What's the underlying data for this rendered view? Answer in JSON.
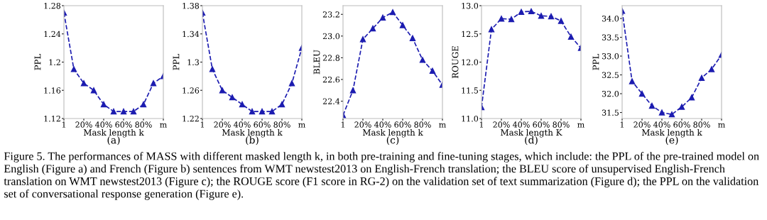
{
  "chart_data": [
    {
      "type": "line",
      "xlabel": "Mask length k",
      "ylabel": "PPL",
      "annotations": [
        "(a)",
        "Figure 5. The performances of MASS with different masked length k, in both pre-training and fine-tuning stages, which include: the PPL of the pre-trained model on English (Figure a) and French (Figure b) sentences from WMT newstest2013 on English-French translation; the BLEU score of unsupervised English-French translation on WMT newstest2013 (Figure c); the ROUGE score (F1 score in RG-2) on the validation set of text summarization (Figure d); the PPL on the validation set of conversational response generation (Figure e)."
      ],
      "categories": [
        "1",
        null,
        "20%",
        null,
        "40%",
        null,
        "60%",
        null,
        "80%",
        null,
        "m"
      ],
      "ylim": [
        1.12,
        1.28
      ],
      "yticks": [
        1.12,
        1.16,
        {
          "value": 1.2,
          "label": "1.2"
        },
        1.24,
        1.28
      ],
      "marker": "triangle",
      "line_style": "dashed",
      "grid": false,
      "series": [
        {
          "color": "#1c1cb0",
          "values": [
            1.27,
            1.19,
            1.17,
            1.16,
            1.14,
            1.13,
            1.13,
            1.13,
            1.14,
            1.17,
            1.18
          ]
        }
      ]
    },
    {
      "type": "line",
      "xlabel": "Mask length k",
      "ylabel": "PPL",
      "annotations": [
        "(b)"
      ],
      "categories": [
        "1",
        null,
        "20%",
        null,
        "40%",
        null,
        "60%",
        null,
        "80%",
        null,
        "m"
      ],
      "ylim": [
        1.22,
        1.38
      ],
      "yticks": [
        1.22,
        1.26,
        {
          "value": 1.3,
          "label": "1.3"
        },
        1.34,
        1.38
      ],
      "marker": "triangle",
      "line_style": "dashed",
      "grid": false,
      "series": [
        {
          "color": "#1c1cb0",
          "values": [
            1.37,
            1.29,
            1.26,
            1.25,
            1.24,
            1.23,
            1.23,
            1.23,
            1.24,
            1.27,
            1.32
          ]
        }
      ]
    },
    {
      "type": "line",
      "xlabel": "Mask length k",
      "ylabel": "BLEU",
      "annotations": [
        "(c)"
      ],
      "categories": [
        "1",
        null,
        "20%",
        null,
        "40%",
        null,
        "60%",
        null,
        "80%",
        null,
        "m"
      ],
      "ylim": [
        22.24,
        23.28
      ],
      "yticks": [
        22.4,
        22.6,
        22.8,
        {
          "value": 23.0,
          "label": "23.0"
        },
        23.2
      ],
      "marker": "triangle",
      "line_style": "dashed",
      "grid": false,
      "series": [
        {
          "color": "#1c1cb0",
          "values": [
            22.27,
            22.5,
            22.97,
            23.07,
            23.17,
            23.22,
            23.1,
            22.98,
            22.78,
            22.68,
            22.55
          ]
        }
      ]
    },
    {
      "type": "line",
      "xlabel": "Mask length K",
      "ylabel": "ROUGE",
      "annotations": [
        "(d)"
      ],
      "categories": [
        "1",
        null,
        "20%",
        null,
        "40%",
        null,
        "60%",
        null,
        "80%",
        null,
        "m"
      ],
      "ylim": [
        11.0,
        13.0
      ],
      "yticks": [
        {
          "value": 11.0,
          "label": "11.0"
        },
        11.5,
        {
          "value": 12.0,
          "label": "12.0"
        },
        12.5,
        {
          "value": 13.0,
          "label": "13.0"
        }
      ],
      "marker": "triangle",
      "line_style": "dashed",
      "grid": false,
      "series": [
        {
          "color": "#1c1cb0",
          "values": [
            11.2,
            12.58,
            12.77,
            12.76,
            12.89,
            12.9,
            12.82,
            12.81,
            12.73,
            12.45,
            12.25
          ]
        }
      ]
    },
    {
      "type": "line",
      "xlabel": "Mask length k",
      "ylabel": "PPL",
      "annotations": [
        "(e)"
      ],
      "categories": [
        "1",
        null,
        "20%",
        null,
        "40%",
        null,
        "60%",
        null,
        "80%",
        null,
        "m"
      ],
      "ylim": [
        31.34,
        34.34
      ],
      "yticks": [
        31.5,
        {
          "value": 32.0,
          "label": "32.0"
        },
        32.5,
        {
          "value": 33.0,
          "label": "33.0"
        },
        33.5,
        {
          "value": 34.0,
          "label": "34.0"
        }
      ],
      "marker": "triangle",
      "line_style": "dashed",
      "grid": false,
      "series": [
        {
          "color": "#1c1cb0",
          "values": [
            34.2,
            32.33,
            32.0,
            31.68,
            31.5,
            31.45,
            31.65,
            31.9,
            32.42,
            32.65,
            33.03
          ]
        }
      ]
    }
  ]
}
